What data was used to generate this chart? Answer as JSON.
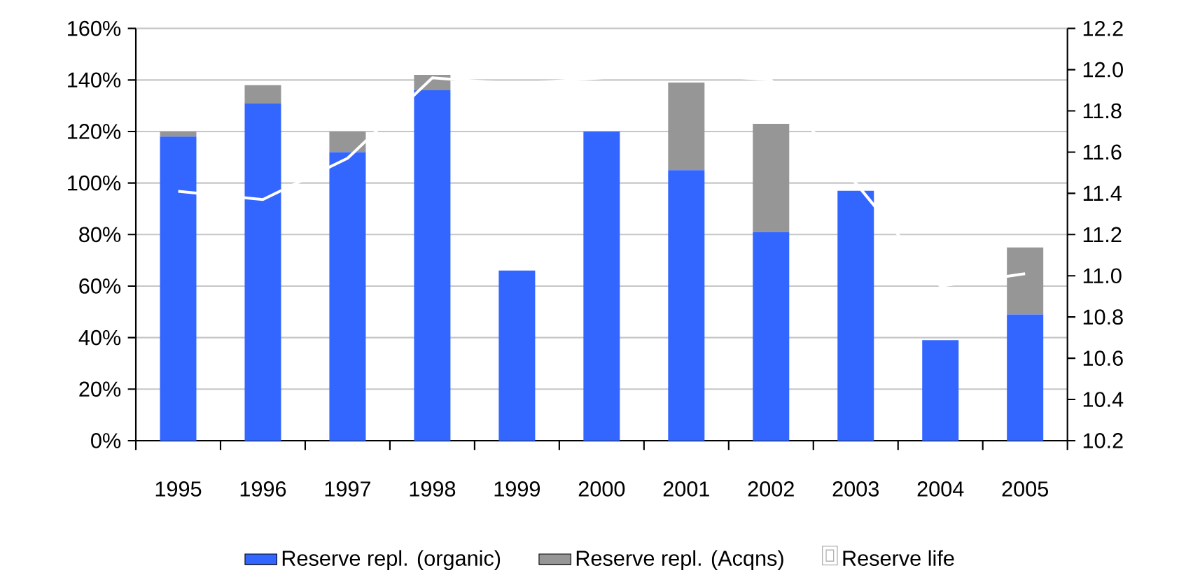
{
  "chart_data": {
    "type": "bar",
    "stacked": true,
    "grid": "y",
    "legend": "bottom",
    "categories": [
      "1995",
      "1996",
      "1997",
      "1998",
      "1999",
      "2000",
      "2001",
      "2002",
      "2003",
      "2004",
      "2005"
    ],
    "series": [
      {
        "name": "Reserve repl. (organic)",
        "color": "#3366ff",
        "values": [
          118,
          131,
          112,
          136,
          66,
          120,
          105,
          81,
          97,
          39,
          49
        ]
      },
      {
        "name": "Reserve repl. (Acqns)",
        "color": "#969696",
        "values": [
          2,
          7,
          8,
          6,
          0,
          0,
          34,
          42,
          0,
          0,
          26
        ]
      },
      {
        "name": "Reserve life",
        "type": "line",
        "axis": "y2",
        "color": "#ffffff",
        "values": [
          11.41,
          11.37,
          11.57,
          11.96,
          11.93,
          11.96,
          11.98,
          11.95,
          11.45,
          10.95,
          11.01
        ]
      }
    ],
    "ylim": [
      0,
      160
    ],
    "yticks": [
      {
        "value": 0,
        "label": "0%"
      },
      {
        "value": 20,
        "label": "20%"
      },
      {
        "value": 40,
        "label": "40%"
      },
      {
        "value": 60,
        "label": "60%"
      },
      {
        "value": 80,
        "label": "80%"
      },
      {
        "value": 100,
        "label": "100%"
      },
      {
        "value": 120,
        "label": "120%"
      },
      {
        "value": 140,
        "label": "140%"
      },
      {
        "value": 160,
        "label": "160%"
      }
    ],
    "y2lim": [
      10.2,
      12.2
    ],
    "y2ticks": [
      {
        "value": 10.2,
        "label": "10.2"
      },
      {
        "value": 10.4,
        "label": "10.4"
      },
      {
        "value": 10.6,
        "label": "10.6"
      },
      {
        "value": 10.8,
        "label": "10.8"
      },
      {
        "value": 11.0,
        "label": "11.0"
      },
      {
        "value": 11.2,
        "label": "11.2"
      },
      {
        "value": 11.4,
        "label": "11.4"
      },
      {
        "value": 11.6,
        "label": "11.6"
      },
      {
        "value": 11.8,
        "label": "11.8"
      },
      {
        "value": 12.0,
        "label": "12.0"
      },
      {
        "value": 12.2,
        "label": "12.2"
      }
    ]
  }
}
